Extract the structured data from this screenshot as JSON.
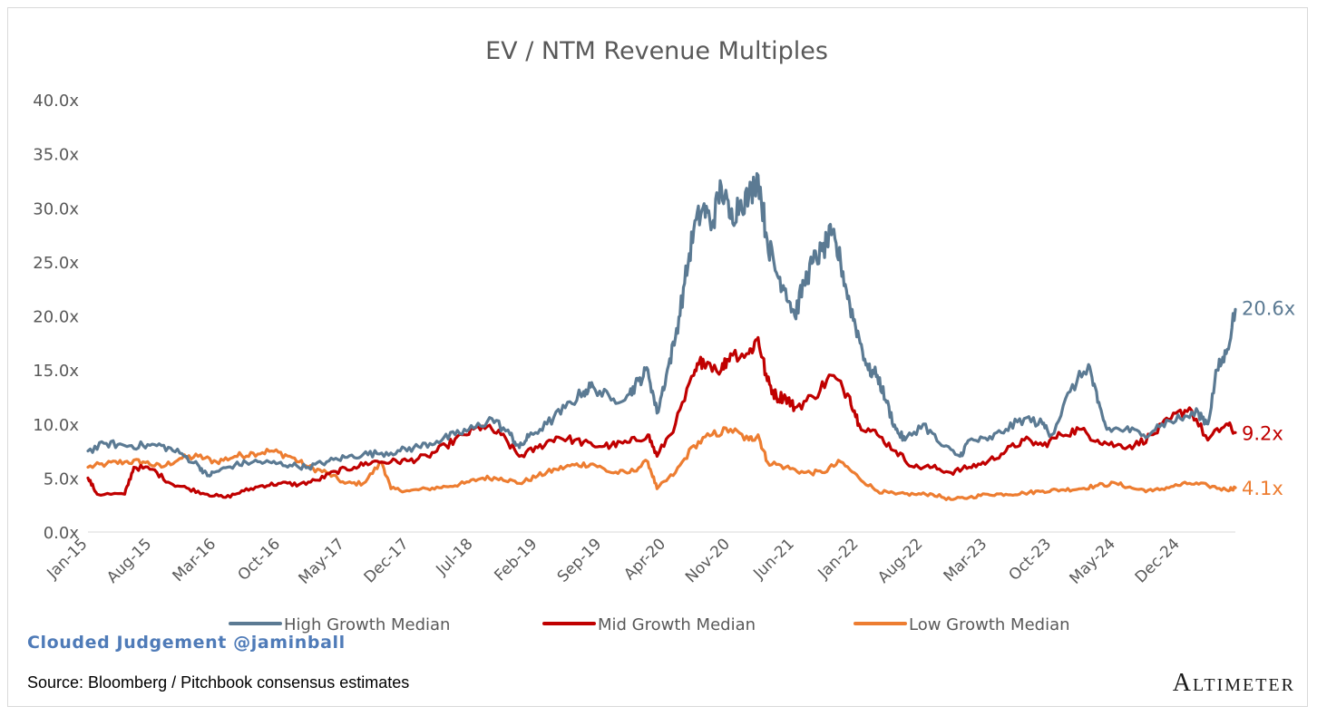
{
  "chart_data": {
    "type": "line",
    "title": "EV / NTM Revenue Multiples",
    "xlabel": "",
    "ylabel": "",
    "ylim": [
      0,
      40
    ],
    "y_ticks": [
      "0.0x",
      "5.0x",
      "10.0x",
      "15.0x",
      "20.0x",
      "25.0x",
      "30.0x",
      "35.0x",
      "40.0x"
    ],
    "x_ticks": [
      "Jan-15",
      "Aug-15",
      "Mar-16",
      "Oct-16",
      "May-17",
      "Dec-17",
      "Jul-18",
      "Feb-19",
      "Sep-19",
      "Apr-20",
      "Nov-20",
      "Jun-21",
      "Jan-22",
      "Aug-22",
      "Mar-23",
      "Oct-23",
      "May-24",
      "Dec-24"
    ],
    "x_range": [
      "Jan-15",
      "Jun-25"
    ],
    "grid": false,
    "legend_position": "bottom",
    "series": [
      {
        "name": "High Growth Median",
        "color": "#5b7a93",
        "end_label": "20.6x",
        "points": [
          [
            "2015-01",
            7.5
          ],
          [
            "2015-03",
            8.2
          ],
          [
            "2015-05",
            8.0
          ],
          [
            "2015-07",
            8.0
          ],
          [
            "2015-09",
            8.0
          ],
          [
            "2015-11",
            7.3
          ],
          [
            "2016-01",
            6.2
          ],
          [
            "2016-02",
            5.2
          ],
          [
            "2016-03",
            5.6
          ],
          [
            "2016-05",
            6.2
          ],
          [
            "2016-07",
            6.5
          ],
          [
            "2016-09",
            6.4
          ],
          [
            "2016-11",
            6.2
          ],
          [
            "2017-01",
            6.0
          ],
          [
            "2017-03",
            6.5
          ],
          [
            "2017-05",
            6.9
          ],
          [
            "2017-07",
            7.2
          ],
          [
            "2017-09",
            7.3
          ],
          [
            "2017-11",
            7.5
          ],
          [
            "2018-01",
            7.9
          ],
          [
            "2018-03",
            8.4
          ],
          [
            "2018-05",
            9.0
          ],
          [
            "2018-07",
            9.6
          ],
          [
            "2018-09",
            10.5
          ],
          [
            "2018-11",
            9.0
          ],
          [
            "2018-12",
            7.8
          ],
          [
            "2019-01",
            8.8
          ],
          [
            "2019-03",
            10.0
          ],
          [
            "2019-05",
            11.5
          ],
          [
            "2019-07",
            13.0
          ],
          [
            "2019-08",
            13.5
          ],
          [
            "2019-10",
            12.2
          ],
          [
            "2019-12",
            12.8
          ],
          [
            "2020-01",
            14.0
          ],
          [
            "2020-02",
            15.0
          ],
          [
            "2020-03",
            11.0
          ],
          [
            "2020-04",
            14.5
          ],
          [
            "2020-05",
            18.0
          ],
          [
            "2020-06",
            23.0
          ],
          [
            "2020-07",
            28.0
          ],
          [
            "2020-08",
            30.0
          ],
          [
            "2020-09",
            28.5
          ],
          [
            "2020-10",
            32.0
          ],
          [
            "2020-11",
            29.0
          ],
          [
            "2020-12",
            30.5
          ],
          [
            "2021-01",
            31.0
          ],
          [
            "2021-02",
            33.0
          ],
          [
            "2021-03",
            27.0
          ],
          [
            "2021-04",
            24.0
          ],
          [
            "2021-05",
            22.5
          ],
          [
            "2021-06",
            20.0
          ],
          [
            "2021-07",
            23.0
          ],
          [
            "2021-08",
            25.0
          ],
          [
            "2021-09",
            26.0
          ],
          [
            "2021-10",
            27.5
          ],
          [
            "2021-11",
            25.0
          ],
          [
            "2021-12",
            21.0
          ],
          [
            "2022-01",
            18.0
          ],
          [
            "2022-02",
            15.0
          ],
          [
            "2022-03",
            14.5
          ],
          [
            "2022-04",
            12.0
          ],
          [
            "2022-05",
            9.5
          ],
          [
            "2022-06",
            8.5
          ],
          [
            "2022-08",
            10.0
          ],
          [
            "2022-10",
            8.0
          ],
          [
            "2022-12",
            7.0
          ],
          [
            "2023-01",
            8.5
          ],
          [
            "2023-03",
            8.5
          ],
          [
            "2023-05",
            9.5
          ],
          [
            "2023-07",
            10.5
          ],
          [
            "2023-09",
            10.0
          ],
          [
            "2023-10",
            9.0
          ],
          [
            "2023-12",
            13.0
          ],
          [
            "2024-02",
            15.5
          ],
          [
            "2024-03",
            12.0
          ],
          [
            "2024-04",
            9.5
          ],
          [
            "2024-06",
            9.5
          ],
          [
            "2024-08",
            9.0
          ],
          [
            "2024-10",
            10.0
          ],
          [
            "2024-12",
            10.5
          ],
          [
            "2025-02",
            11.0
          ],
          [
            "2025-03",
            10.0
          ],
          [
            "2025-04",
            15.0
          ],
          [
            "2025-05",
            16.5
          ],
          [
            "2025-06",
            20.6
          ]
        ]
      },
      {
        "name": "Mid Growth Median",
        "color": "#c00000",
        "end_label": "9.2x",
        "points": [
          [
            "2015-01",
            5.0
          ],
          [
            "2015-02",
            3.5
          ],
          [
            "2015-05",
            3.5
          ],
          [
            "2015-06",
            6.0
          ],
          [
            "2015-08",
            5.8
          ],
          [
            "2015-10",
            4.5
          ],
          [
            "2015-12",
            4.0
          ],
          [
            "2016-02",
            3.5
          ],
          [
            "2016-04",
            3.2
          ],
          [
            "2016-06",
            3.8
          ],
          [
            "2016-08",
            4.3
          ],
          [
            "2016-10",
            4.5
          ],
          [
            "2016-12",
            4.4
          ],
          [
            "2017-02",
            4.8
          ],
          [
            "2017-04",
            5.6
          ],
          [
            "2017-06",
            6.0
          ],
          [
            "2017-08",
            6.5
          ],
          [
            "2017-10",
            6.5
          ],
          [
            "2017-12",
            6.6
          ],
          [
            "2018-02",
            7.0
          ],
          [
            "2018-04",
            8.0
          ],
          [
            "2018-06",
            9.0
          ],
          [
            "2018-08",
            9.8
          ],
          [
            "2018-10",
            9.0
          ],
          [
            "2018-12",
            7.0
          ],
          [
            "2019-02",
            7.8
          ],
          [
            "2019-04",
            8.8
          ],
          [
            "2019-06",
            8.5
          ],
          [
            "2019-08",
            8.0
          ],
          [
            "2019-10",
            8.0
          ],
          [
            "2019-12",
            8.3
          ],
          [
            "2020-02",
            9.0
          ],
          [
            "2020-03",
            7.0
          ],
          [
            "2020-05",
            10.0
          ],
          [
            "2020-07",
            14.5
          ],
          [
            "2020-08",
            16.0
          ],
          [
            "2020-10",
            15.0
          ],
          [
            "2020-11",
            16.5
          ],
          [
            "2021-01",
            16.5
          ],
          [
            "2021-02",
            18.0
          ],
          [
            "2021-03",
            14.0
          ],
          [
            "2021-04",
            12.5
          ],
          [
            "2021-05",
            12.5
          ],
          [
            "2021-06",
            11.5
          ],
          [
            "2021-08",
            12.5
          ],
          [
            "2021-10",
            14.5
          ],
          [
            "2021-12",
            12.5
          ],
          [
            "2022-01",
            10.0
          ],
          [
            "2022-03",
            9.0
          ],
          [
            "2022-05",
            7.5
          ],
          [
            "2022-07",
            6.0
          ],
          [
            "2022-09",
            6.0
          ],
          [
            "2022-11",
            5.5
          ],
          [
            "2023-01",
            6.0
          ],
          [
            "2023-03",
            6.5
          ],
          [
            "2023-05",
            7.5
          ],
          [
            "2023-07",
            8.5
          ],
          [
            "2023-09",
            8.0
          ],
          [
            "2023-11",
            9.0
          ],
          [
            "2024-01",
            9.5
          ],
          [
            "2024-03",
            8.5
          ],
          [
            "2024-05",
            8.0
          ],
          [
            "2024-07",
            8.0
          ],
          [
            "2024-09",
            9.0
          ],
          [
            "2024-11",
            10.5
          ],
          [
            "2025-01",
            11.5
          ],
          [
            "2025-03",
            8.5
          ],
          [
            "2025-05",
            10.0
          ],
          [
            "2025-06",
            9.2
          ]
        ]
      },
      {
        "name": "Low Growth Median",
        "color": "#ed7d31",
        "end_label": "4.1x",
        "points": [
          [
            "2015-01",
            6.0
          ],
          [
            "2015-03",
            6.3
          ],
          [
            "2015-05",
            6.5
          ],
          [
            "2015-07",
            6.5
          ],
          [
            "2015-09",
            6.0
          ],
          [
            "2015-11",
            6.8
          ],
          [
            "2016-01",
            7.0
          ],
          [
            "2016-03",
            6.5
          ],
          [
            "2016-05",
            7.0
          ],
          [
            "2016-07",
            7.3
          ],
          [
            "2016-09",
            7.5
          ],
          [
            "2016-11",
            7.0
          ],
          [
            "2017-01",
            6.0
          ],
          [
            "2017-03",
            5.5
          ],
          [
            "2017-05",
            4.5
          ],
          [
            "2017-07",
            4.5
          ],
          [
            "2017-09",
            6.5
          ],
          [
            "2017-10",
            4.0
          ],
          [
            "2017-12",
            3.8
          ],
          [
            "2018-02",
            4.0
          ],
          [
            "2018-04",
            4.2
          ],
          [
            "2018-06",
            4.5
          ],
          [
            "2018-08",
            5.0
          ],
          [
            "2018-10",
            5.0
          ],
          [
            "2018-12",
            4.5
          ],
          [
            "2019-02",
            5.2
          ],
          [
            "2019-04",
            5.8
          ],
          [
            "2019-06",
            6.2
          ],
          [
            "2019-08",
            6.3
          ],
          [
            "2019-10",
            5.5
          ],
          [
            "2019-12",
            5.5
          ],
          [
            "2020-02",
            6.5
          ],
          [
            "2020-03",
            4.0
          ],
          [
            "2020-05",
            5.5
          ],
          [
            "2020-07",
            8.0
          ],
          [
            "2020-09",
            9.0
          ],
          [
            "2020-11",
            9.5
          ],
          [
            "2021-01",
            8.5
          ],
          [
            "2021-02",
            9.0
          ],
          [
            "2021-03",
            6.5
          ],
          [
            "2021-05",
            6.0
          ],
          [
            "2021-07",
            5.5
          ],
          [
            "2021-09",
            5.5
          ],
          [
            "2021-11",
            6.5
          ],
          [
            "2022-01",
            5.0
          ],
          [
            "2022-03",
            3.8
          ],
          [
            "2022-05",
            3.5
          ],
          [
            "2022-07",
            3.5
          ],
          [
            "2022-09",
            3.5
          ],
          [
            "2022-11",
            3.0
          ],
          [
            "2023-01",
            3.2
          ],
          [
            "2023-03",
            3.5
          ],
          [
            "2023-05",
            3.5
          ],
          [
            "2023-07",
            3.6
          ],
          [
            "2023-09",
            3.8
          ],
          [
            "2023-11",
            3.9
          ],
          [
            "2024-01",
            4.0
          ],
          [
            "2024-03",
            4.3
          ],
          [
            "2024-05",
            4.5
          ],
          [
            "2024-07",
            4.0
          ],
          [
            "2024-09",
            3.8
          ],
          [
            "2024-11",
            4.2
          ],
          [
            "2025-01",
            4.5
          ],
          [
            "2025-03",
            4.3
          ],
          [
            "2025-05",
            3.9
          ],
          [
            "2025-06",
            4.1
          ]
        ]
      }
    ]
  },
  "footer": {
    "watermark": "Clouded Judgement @jaminball",
    "source": "Source: Bloomberg / Pitchbook consensus estimates",
    "brand": "Altimeter"
  }
}
